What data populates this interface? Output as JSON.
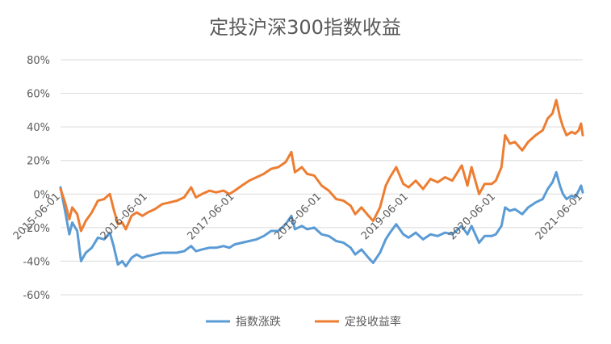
{
  "chart_data": {
    "type": "line",
    "title": "定投沪深300指数收益",
    "xlabel": "",
    "ylabel": "",
    "ylim": [
      -0.6,
      0.8
    ],
    "y_ticks": [
      {
        "value": -0.6,
        "label": "-60%"
      },
      {
        "value": -0.4,
        "label": "-40%"
      },
      {
        "value": -0.2,
        "label": "-20%"
      },
      {
        "value": 0.0,
        "label": "0%"
      },
      {
        "value": 0.2,
        "label": "20%"
      },
      {
        "value": 0.4,
        "label": "40%"
      },
      {
        "value": 0.6,
        "label": "60%"
      },
      {
        "value": 0.8,
        "label": "80%"
      }
    ],
    "xlim": [
      "2015-06-01",
      "2021-06-01"
    ],
    "x_ticks": [
      "2015-06-01",
      "2016-06-01",
      "2017-06-01",
      "2018-06-01",
      "2019-06-01",
      "2020-06-01",
      "2021-06-01"
    ],
    "grid": true,
    "legend_position": "bottom",
    "series": [
      {
        "name": "指数涨跌",
        "color": "#5B9BD5",
        "points": [
          [
            "2015-06-01",
            0.04
          ],
          [
            "2015-06-20",
            -0.1
          ],
          [
            "2015-07-08",
            -0.24
          ],
          [
            "2015-07-20",
            -0.17
          ],
          [
            "2015-08-10",
            -0.22
          ],
          [
            "2015-08-26",
            -0.4
          ],
          [
            "2015-09-15",
            -0.35
          ],
          [
            "2015-10-10",
            -0.32
          ],
          [
            "2015-11-05",
            -0.26
          ],
          [
            "2015-12-01",
            -0.27
          ],
          [
            "2015-12-25",
            -0.23
          ],
          [
            "2016-01-10",
            -0.31
          ],
          [
            "2016-01-28",
            -0.42
          ],
          [
            "2016-02-15",
            -0.4
          ],
          [
            "2016-03-01",
            -0.43
          ],
          [
            "2016-03-25",
            -0.38
          ],
          [
            "2016-04-15",
            -0.36
          ],
          [
            "2016-05-10",
            -0.38
          ],
          [
            "2016-06-01",
            -0.37
          ],
          [
            "2016-07-01",
            -0.36
          ],
          [
            "2016-08-01",
            -0.35
          ],
          [
            "2016-09-01",
            -0.35
          ],
          [
            "2016-10-01",
            -0.35
          ],
          [
            "2016-11-01",
            -0.34
          ],
          [
            "2016-11-30",
            -0.31
          ],
          [
            "2016-12-20",
            -0.34
          ],
          [
            "2017-01-15",
            -0.33
          ],
          [
            "2017-02-15",
            -0.32
          ],
          [
            "2017-03-15",
            -0.32
          ],
          [
            "2017-04-15",
            -0.31
          ],
          [
            "2017-05-10",
            -0.32
          ],
          [
            "2017-06-01",
            -0.3
          ],
          [
            "2017-07-01",
            -0.29
          ],
          [
            "2017-08-01",
            -0.28
          ],
          [
            "2017-09-01",
            -0.27
          ],
          [
            "2017-10-01",
            -0.25
          ],
          [
            "2017-11-01",
            -0.22
          ],
          [
            "2017-12-01",
            -0.22
          ],
          [
            "2018-01-01",
            -0.18
          ],
          [
            "2018-01-25",
            -0.13
          ],
          [
            "2018-02-09",
            -0.21
          ],
          [
            "2018-03-10",
            -0.19
          ],
          [
            "2018-04-01",
            -0.21
          ],
          [
            "2018-05-01",
            -0.2
          ],
          [
            "2018-06-01",
            -0.24
          ],
          [
            "2018-07-01",
            -0.25
          ],
          [
            "2018-08-01",
            -0.28
          ],
          [
            "2018-09-01",
            -0.29
          ],
          [
            "2018-10-01",
            -0.32
          ],
          [
            "2018-10-20",
            -0.36
          ],
          [
            "2018-11-15",
            -0.33
          ],
          [
            "2018-12-15",
            -0.38
          ],
          [
            "2019-01-03",
            -0.41
          ],
          [
            "2019-02-01",
            -0.35
          ],
          [
            "2019-02-25",
            -0.27
          ],
          [
            "2019-03-15",
            -0.23
          ],
          [
            "2019-04-10",
            -0.18
          ],
          [
            "2019-05-10",
            -0.24
          ],
          [
            "2019-06-01",
            -0.26
          ],
          [
            "2019-07-01",
            -0.23
          ],
          [
            "2019-08-01",
            -0.27
          ],
          [
            "2019-09-01",
            -0.24
          ],
          [
            "2019-10-01",
            -0.25
          ],
          [
            "2019-11-01",
            -0.23
          ],
          [
            "2019-12-01",
            -0.24
          ],
          [
            "2020-01-10",
            -0.19
          ],
          [
            "2020-02-03",
            -0.24
          ],
          [
            "2020-02-20",
            -0.19
          ],
          [
            "2020-03-23",
            -0.29
          ],
          [
            "2020-04-15",
            -0.25
          ],
          [
            "2020-05-15",
            -0.25
          ],
          [
            "2020-06-01",
            -0.24
          ],
          [
            "2020-06-25",
            -0.19
          ],
          [
            "2020-07-10",
            -0.08
          ],
          [
            "2020-07-30",
            -0.1
          ],
          [
            "2020-08-20",
            -0.09
          ],
          [
            "2020-09-20",
            -0.12
          ],
          [
            "2020-10-15",
            -0.08
          ],
          [
            "2020-11-15",
            -0.05
          ],
          [
            "2020-12-15",
            -0.03
          ],
          [
            "2021-01-05",
            0.03
          ],
          [
            "2021-01-25",
            0.07
          ],
          [
            "2021-02-10",
            0.13
          ],
          [
            "2021-02-25",
            0.05
          ],
          [
            "2021-03-10",
            0.0
          ],
          [
            "2021-03-25",
            -0.03
          ],
          [
            "2021-04-15",
            -0.01
          ],
          [
            "2021-05-01",
            -0.02
          ],
          [
            "2021-05-15",
            0.02
          ],
          [
            "2021-05-25",
            0.05
          ],
          [
            "2021-06-01",
            0.01
          ]
        ]
      },
      {
        "name": "定投收益率",
        "color": "#ED7D31",
        "points": [
          [
            "2015-06-01",
            0.03
          ],
          [
            "2015-06-20",
            -0.05
          ],
          [
            "2015-07-08",
            -0.15
          ],
          [
            "2015-07-20",
            -0.08
          ],
          [
            "2015-08-10",
            -0.12
          ],
          [
            "2015-08-26",
            -0.22
          ],
          [
            "2015-09-15",
            -0.16
          ],
          [
            "2015-10-10",
            -0.11
          ],
          [
            "2015-11-05",
            -0.04
          ],
          [
            "2015-12-01",
            -0.03
          ],
          [
            "2015-12-25",
            0.0
          ],
          [
            "2016-01-10",
            -0.09
          ],
          [
            "2016-01-28",
            -0.18
          ],
          [
            "2016-02-15",
            -0.17
          ],
          [
            "2016-03-01",
            -0.21
          ],
          [
            "2016-03-25",
            -0.13
          ],
          [
            "2016-04-15",
            -0.11
          ],
          [
            "2016-05-10",
            -0.13
          ],
          [
            "2016-06-01",
            -0.11
          ],
          [
            "2016-07-01",
            -0.09
          ],
          [
            "2016-08-01",
            -0.06
          ],
          [
            "2016-09-01",
            -0.05
          ],
          [
            "2016-10-01",
            -0.04
          ],
          [
            "2016-11-01",
            -0.02
          ],
          [
            "2016-11-30",
            0.04
          ],
          [
            "2016-12-20",
            -0.02
          ],
          [
            "2017-01-15",
            0.0
          ],
          [
            "2017-02-15",
            0.02
          ],
          [
            "2017-03-15",
            0.01
          ],
          [
            "2017-04-15",
            0.02
          ],
          [
            "2017-05-10",
            0.0
          ],
          [
            "2017-06-01",
            0.02
          ],
          [
            "2017-07-01",
            0.05
          ],
          [
            "2017-08-01",
            0.08
          ],
          [
            "2017-09-01",
            0.1
          ],
          [
            "2017-10-01",
            0.12
          ],
          [
            "2017-11-01",
            0.15
          ],
          [
            "2017-12-01",
            0.16
          ],
          [
            "2018-01-01",
            0.19
          ],
          [
            "2018-01-25",
            0.25
          ],
          [
            "2018-02-09",
            0.13
          ],
          [
            "2018-03-10",
            0.16
          ],
          [
            "2018-04-01",
            0.12
          ],
          [
            "2018-05-01",
            0.11
          ],
          [
            "2018-06-01",
            0.05
          ],
          [
            "2018-07-01",
            0.02
          ],
          [
            "2018-08-01",
            -0.03
          ],
          [
            "2018-09-01",
            -0.04
          ],
          [
            "2018-10-01",
            -0.07
          ],
          [
            "2018-10-20",
            -0.12
          ],
          [
            "2018-11-15",
            -0.08
          ],
          [
            "2018-12-15",
            -0.13
          ],
          [
            "2019-01-03",
            -0.16
          ],
          [
            "2019-02-01",
            -0.08
          ],
          [
            "2019-02-25",
            0.05
          ],
          [
            "2019-03-15",
            0.1
          ],
          [
            "2019-04-10",
            0.16
          ],
          [
            "2019-05-10",
            0.06
          ],
          [
            "2019-06-01",
            0.04
          ],
          [
            "2019-07-01",
            0.08
          ],
          [
            "2019-08-01",
            0.03
          ],
          [
            "2019-09-01",
            0.09
          ],
          [
            "2019-10-01",
            0.07
          ],
          [
            "2019-11-01",
            0.1
          ],
          [
            "2019-12-01",
            0.08
          ],
          [
            "2020-01-10",
            0.17
          ],
          [
            "2020-02-03",
            0.05
          ],
          [
            "2020-02-20",
            0.16
          ],
          [
            "2020-03-23",
            0.0
          ],
          [
            "2020-04-15",
            0.06
          ],
          [
            "2020-05-15",
            0.06
          ],
          [
            "2020-06-01",
            0.08
          ],
          [
            "2020-06-25",
            0.16
          ],
          [
            "2020-07-10",
            0.35
          ],
          [
            "2020-07-30",
            0.3
          ],
          [
            "2020-08-20",
            0.31
          ],
          [
            "2020-09-20",
            0.26
          ],
          [
            "2020-10-15",
            0.31
          ],
          [
            "2020-11-15",
            0.35
          ],
          [
            "2020-12-15",
            0.38
          ],
          [
            "2021-01-05",
            0.45
          ],
          [
            "2021-01-25",
            0.48
          ],
          [
            "2021-02-10",
            0.56
          ],
          [
            "2021-02-25",
            0.46
          ],
          [
            "2021-03-10",
            0.4
          ],
          [
            "2021-03-25",
            0.35
          ],
          [
            "2021-04-15",
            0.37
          ],
          [
            "2021-05-01",
            0.36
          ],
          [
            "2021-05-15",
            0.38
          ],
          [
            "2021-05-25",
            0.42
          ],
          [
            "2021-06-01",
            0.35
          ]
        ]
      }
    ]
  }
}
